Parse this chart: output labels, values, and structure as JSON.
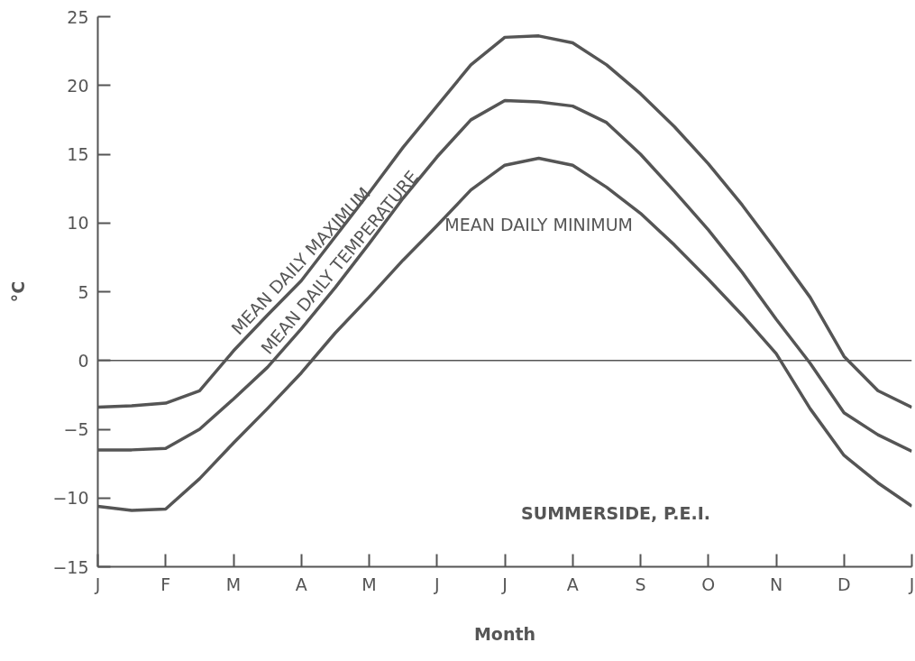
{
  "chart_data": {
    "type": "line",
    "xlabel": "Month",
    "ylabel": "°C",
    "categories": [
      "J",
      null,
      "F",
      null,
      "M",
      null,
      "A",
      null,
      "M",
      null,
      "J",
      null,
      "J",
      null,
      "A",
      null,
      "S",
      null,
      "O",
      null,
      "N",
      null,
      "D",
      null,
      "J"
    ],
    "series": [
      {
        "name": "MEAN DAILY MAXIMUM",
        "color": "#555555",
        "values": [
          -3.4,
          -3.3,
          -3.1,
          -2.2,
          0.7,
          3.3,
          5.8,
          9.0,
          12.2,
          15.5,
          18.5,
          21.5,
          23.5,
          23.6,
          23.1,
          21.5,
          19.4,
          17.0,
          14.3,
          11.3,
          8.0,
          4.6,
          0.3,
          -2.2,
          -3.4
        ]
      },
      {
        "name": "MEAN DAILY TEMPERATURE",
        "color": "#555555",
        "values": [
          -6.5,
          -6.5,
          -6.4,
          -5.0,
          -2.8,
          -0.5,
          2.3,
          5.3,
          8.5,
          11.8,
          14.8,
          17.5,
          18.9,
          18.8,
          18.5,
          17.3,
          15.0,
          12.3,
          9.5,
          6.4,
          3.0,
          -0.2,
          -3.8,
          -5.4,
          -6.6
        ]
      },
      {
        "name": "MEAN DAILY MINIMUM",
        "color": "#555555",
        "values": [
          -10.6,
          -10.9,
          -10.8,
          -8.6,
          -6.0,
          -3.5,
          -0.9,
          2.0,
          4.6,
          7.3,
          9.8,
          12.4,
          14.2,
          14.7,
          14.2,
          12.6,
          10.7,
          8.4,
          5.9,
          3.3,
          0.5,
          -3.5,
          -6.9,
          -8.9,
          -10.6
        ]
      }
    ],
    "ylim": [
      -15,
      25
    ],
    "yticks": [
      -15,
      -10,
      -5,
      0,
      5,
      10,
      15,
      20,
      25
    ],
    "ref_lines": [
      {
        "axis": "y",
        "value": 0,
        "color": "#555555"
      }
    ],
    "annotations": [
      "SUMMERSIDE, P.E.I."
    ],
    "grid": false,
    "legend": false,
    "marker": "none",
    "line_style": "solid"
  }
}
